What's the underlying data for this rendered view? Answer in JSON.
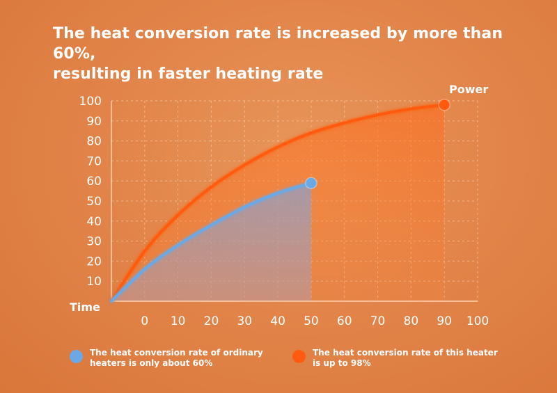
{
  "title": {
    "line1": "The heat conversion rate is increased by more than 60%,",
    "line2": "resulting in faster heating rate"
  },
  "colors": {
    "ordinary": "#6aa9e6",
    "heater": "#ff5a10",
    "grid": "#f6c49c"
  },
  "chart_data": {
    "type": "line",
    "xlabel": "Time",
    "ylabel": "Power",
    "x_ticks": [
      0,
      10,
      20,
      30,
      40,
      50,
      60,
      70,
      80,
      90,
      100
    ],
    "y_ticks": [
      10,
      20,
      30,
      40,
      50,
      60,
      70,
      80,
      90,
      100
    ],
    "xlim": [
      -10,
      100
    ],
    "ylim": [
      0,
      100
    ],
    "grid": true,
    "legend_position": "bottom",
    "series": [
      {
        "name": "The heat conversion rate of ordinary heaters is only about 60%",
        "color": "#6aa9e6",
        "x": [
          -10,
          0,
          10,
          20,
          30,
          40,
          50
        ],
        "y": [
          0,
          16,
          28,
          38,
          47,
          54,
          59
        ]
      },
      {
        "name": "The heat conversion rate of this heater is up to 98%",
        "color": "#ff5a10",
        "x": [
          -10,
          0,
          10,
          20,
          30,
          40,
          50,
          60,
          70,
          80,
          90
        ],
        "y": [
          0,
          25,
          43,
          57,
          68,
          77,
          84,
          89,
          93,
          96,
          98
        ]
      }
    ]
  },
  "legend": {
    "ordinary_line1": "The heat conversion rate of ordinary",
    "ordinary_line2": "heaters is only about 60%",
    "heater_line1": "The heat conversion rate of this heater",
    "heater_line2": "is up to 98%"
  }
}
